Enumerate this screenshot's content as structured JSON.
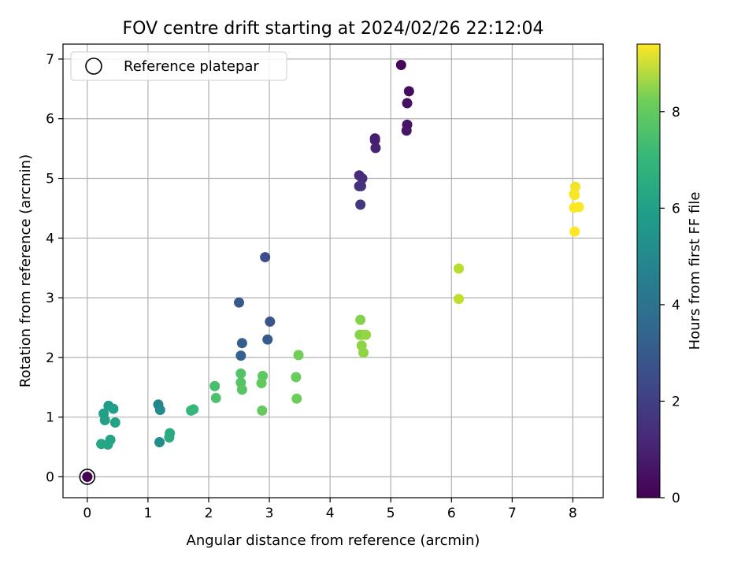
{
  "chart_data": {
    "type": "scatter",
    "title": "FOV centre drift starting at 2024/02/26 22:12:04",
    "xlabel": "Angular distance from reference (arcmin)",
    "ylabel": "Rotation from reference (arcmin)",
    "xlim": [
      -0.4,
      8.5
    ],
    "ylim": [
      -0.35,
      7.25
    ],
    "xticks": [
      "0",
      "1",
      "2",
      "3",
      "4",
      "5",
      "6",
      "7",
      "8"
    ],
    "yticks": [
      "0",
      "1",
      "2",
      "3",
      "4",
      "5",
      "6",
      "7"
    ],
    "grid": true,
    "legend": {
      "placement": "upper-left",
      "entries": [
        "Reference platepar"
      ]
    },
    "reference_point": {
      "name": "Reference platepar",
      "x": 0,
      "y": 0
    },
    "colorbar": {
      "label": "Hours from first FF file",
      "colormap": "viridis",
      "range": [
        0,
        9.4
      ],
      "ticks": [
        "0",
        "2",
        "4",
        "6",
        "8"
      ]
    },
    "series": [
      {
        "x": [
          0,
          5.17,
          5.3,
          5.27,
          5.27,
          5.26,
          4.74,
          4.74,
          4.75,
          4.48,
          4.53,
          4.48,
          4.51,
          4.5,
          2.93,
          2.5,
          2.55,
          2.53,
          3.01,
          2.97,
          1.17,
          1.2,
          1.19,
          0.35,
          0.43,
          0.27,
          0.29,
          0.46,
          0.38,
          0.34,
          0.23,
          1.36,
          1.35,
          1.71,
          1.75,
          2.1,
          2.12,
          2.53,
          2.53,
          2.55,
          2.89,
          2.87,
          2.88,
          3.44,
          3.45,
          3.48,
          4.5,
          4.49,
          4.54,
          4.52,
          4.55,
          4.59,
          6.12,
          6.12,
          8.04,
          8.02,
          8.03,
          8.02,
          8.1,
          8.03
        ],
        "y": [
          0,
          6.9,
          6.46,
          6.26,
          5.9,
          5.8,
          5.67,
          5.64,
          5.51,
          5.05,
          5.0,
          4.87,
          4.87,
          4.56,
          3.68,
          2.92,
          2.24,
          2.03,
          2.6,
          2.3,
          1.21,
          1.12,
          0.58,
          1.19,
          1.14,
          1.06,
          0.95,
          0.91,
          0.62,
          0.54,
          0.55,
          0.73,
          0.66,
          1.11,
          1.13,
          1.52,
          1.32,
          1.73,
          1.58,
          1.46,
          1.69,
          1.57,
          1.11,
          1.67,
          1.31,
          2.04,
          2.63,
          2.38,
          2.38,
          2.2,
          2.08,
          2.38,
          3.49,
          2.98,
          4.86,
          4.74,
          4.72,
          4.51,
          4.52,
          4.11
        ],
        "hours": [
          0,
          0.2,
          0.3,
          0.4,
          0.5,
          0.55,
          0.7,
          0.8,
          0.9,
          1.1,
          1.2,
          1.3,
          1.35,
          1.5,
          2.2,
          2.6,
          2.8,
          2.9,
          2.5,
          2.7,
          4.3,
          4.5,
          4.6,
          5.2,
          5.25,
          5.3,
          5.35,
          5.4,
          5.45,
          5.5,
          5.55,
          5.7,
          5.75,
          6.2,
          6.25,
          6.6,
          6.7,
          6.8,
          6.85,
          6.9,
          7.0,
          7.1,
          7.15,
          7.2,
          7.25,
          7.3,
          7.6,
          7.65,
          7.7,
          7.75,
          7.8,
          7.85,
          8.4,
          8.5,
          9.2,
          9.25,
          9.3,
          9.35,
          9.38,
          9.4
        ]
      }
    ]
  }
}
